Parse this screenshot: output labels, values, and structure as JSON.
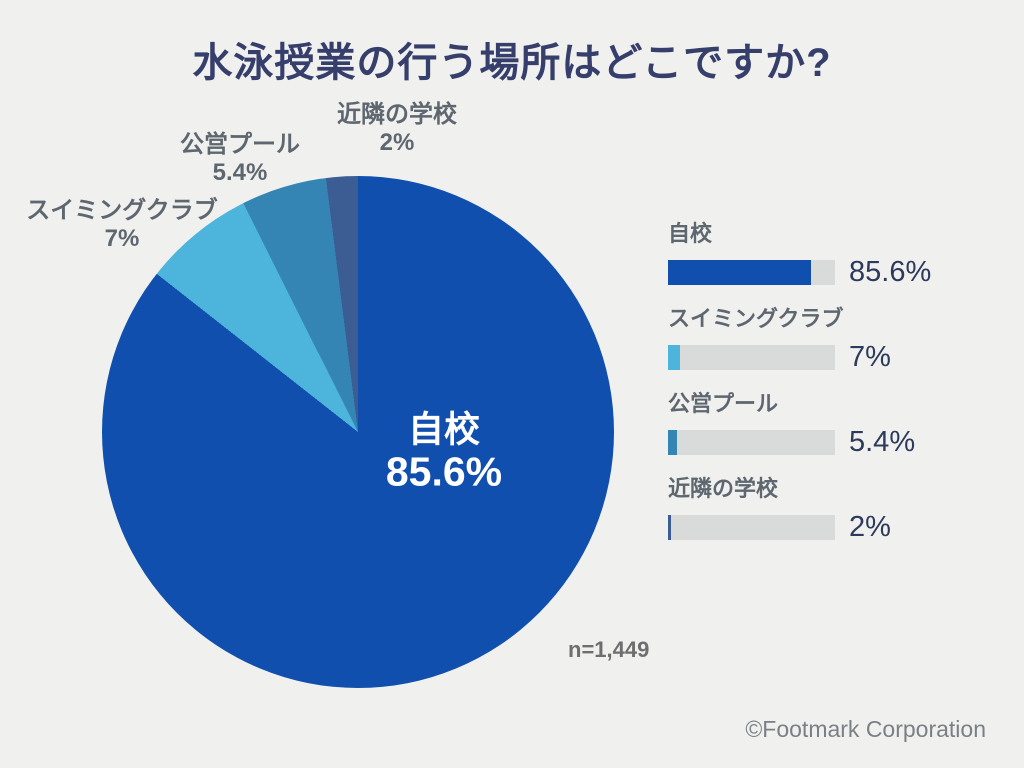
{
  "title": "水泳授業の行う場所はどこですか?",
  "chart_data": {
    "type": "pie",
    "title": "水泳授業の行う場所はどこですか?",
    "categories": [
      "自校",
      "スイミングクラブ",
      "公営プール",
      "近隣の学校"
    ],
    "values": [
      85.6,
      7,
      5.4,
      2
    ],
    "value_labels": [
      "85.6%",
      "7%",
      "5.4%",
      "2%"
    ],
    "colors": [
      "#114fae",
      "#4db5dc",
      "#3484b4",
      "#3b5d94"
    ],
    "start_angle_deg": 0,
    "direction": "clockwise",
    "center_label_index": 0,
    "legend_position": "right",
    "legend_track_max_percent": 100,
    "sample_size_label": "n=1,449"
  },
  "footer": {
    "copyright": "©Footmark Corporation"
  },
  "theme": {
    "background": "#f0f0ee",
    "title_color": "#363e6b",
    "label_color": "#5e6770",
    "value_color": "#2e3a5c",
    "bar_track_color": "#d9dbdb",
    "center_label_color": "#ffffff"
  }
}
